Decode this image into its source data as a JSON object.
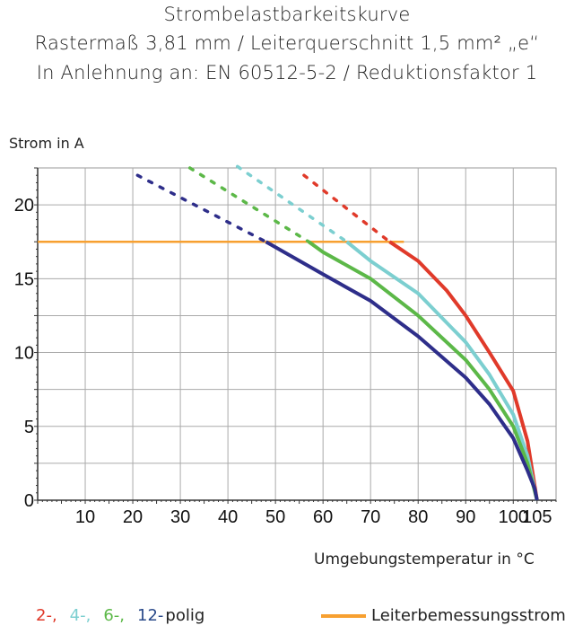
{
  "chart_data": {
    "type": "line",
    "title": "Strombelastbarkeitskurve",
    "subtitle": [
      "Rastermaß 3,81 mm / Leiterquerschnitt 1,5 mm² „e“",
      "In Anlehnung an: EN 60512-5-2 / Reduktionsfaktor 1"
    ],
    "xlabel": "Umgebungstemperatur in °C",
    "ylabel": "Strom in A",
    "xlim": [
      0,
      109
    ],
    "ylim": [
      0,
      22.5
    ],
    "xticks": [
      10,
      20,
      30,
      40,
      50,
      60,
      70,
      80,
      90,
      100,
      105
    ],
    "yticks": [
      0,
      5,
      10,
      15,
      20
    ],
    "grid": true,
    "rated_current": {
      "name": "Leiterbemessungsstrom",
      "value": 17.5,
      "color": "#f7a030"
    },
    "series": [
      {
        "name": "2-,",
        "color": "#e03a2a",
        "dashed": [
          [
            56,
            22
          ],
          [
            74,
            17.5
          ]
        ],
        "points": [
          [
            74,
            17.5
          ],
          [
            80,
            16.2
          ],
          [
            86,
            14.2
          ],
          [
            90,
            12.5
          ],
          [
            95,
            10
          ],
          [
            100,
            7.4
          ],
          [
            103,
            4
          ],
          [
            105,
            0
          ]
        ]
      },
      {
        "name": "4-,",
        "color": "#7ccfd0",
        "dashed": [
          [
            42,
            22.6
          ],
          [
            65,
            17.5
          ]
        ],
        "points": [
          [
            65,
            17.5
          ],
          [
            70,
            16.2
          ],
          [
            80,
            14
          ],
          [
            90,
            10.7
          ],
          [
            95,
            8.5
          ],
          [
            100,
            5.8
          ],
          [
            103,
            3
          ],
          [
            105,
            0
          ]
        ]
      },
      {
        "name": "6-,",
        "color": "#5cb848",
        "dashed": [
          [
            32,
            22.5
          ],
          [
            57,
            17.5
          ]
        ],
        "points": [
          [
            57,
            17.5
          ],
          [
            60,
            16.8
          ],
          [
            70,
            15
          ],
          [
            80,
            12.5
          ],
          [
            90,
            9.5
          ],
          [
            95,
            7.5
          ],
          [
            100,
            5
          ],
          [
            103,
            2.5
          ],
          [
            105,
            0
          ]
        ]
      },
      {
        "name": "12-",
        "color": "#2e2e8a",
        "dashed": [
          [
            21,
            22
          ],
          [
            48,
            17.5
          ]
        ],
        "points": [
          [
            48,
            17.5
          ],
          [
            60,
            15.3
          ],
          [
            70,
            13.5
          ],
          [
            80,
            11.1
          ],
          [
            90,
            8.3
          ],
          [
            95,
            6.5
          ],
          [
            100,
            4.2
          ],
          [
            103,
            2
          ],
          [
            104.5,
            0.8
          ],
          [
            105,
            0
          ]
        ]
      }
    ],
    "legend_suffix": "polig"
  }
}
